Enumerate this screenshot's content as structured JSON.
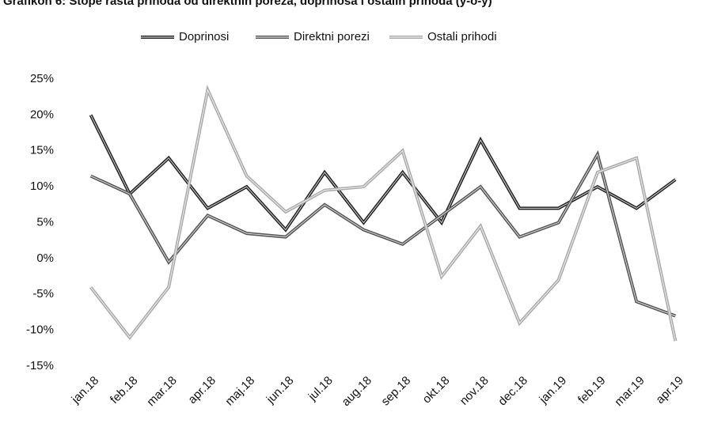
{
  "chart_data": {
    "type": "line",
    "title": "Grafikon 6: Stope rasta prihoda od direktnih poreza, doprinosa i ostalih prihoda (y-o-y)",
    "categories": [
      "jan.18",
      "feb.18",
      "mar.18",
      "apr.18",
      "maj.18",
      "jun.18",
      "jul.18",
      "aug.18",
      "sep.18",
      "okt.18",
      "nov.18",
      "dec.18",
      "jan.19",
      "feb.19",
      "mar.19",
      "apr.19"
    ],
    "series": [
      {
        "name": "Doprinosi",
        "color": "#222222",
        "values": [
          20,
          9,
          14,
          7,
          10,
          4,
          12,
          5,
          12,
          5,
          16.5,
          7,
          7,
          10,
          7,
          11
        ]
      },
      {
        "name": "Direktni porezi",
        "color": "#555555",
        "values": [
          11.5,
          9,
          -0.5,
          6,
          3.5,
          3,
          7.5,
          4,
          2,
          6,
          10,
          3,
          5,
          14.5,
          -6,
          -8
        ]
      },
      {
        "name": "Ostali prihodi",
        "color": "#aaaaaa",
        "values": [
          -4,
          -11,
          -4,
          23.5,
          11.5,
          6.5,
          9.5,
          10,
          15,
          -2.5,
          4.5,
          -9,
          -3,
          12,
          14,
          -11.5
        ]
      }
    ],
    "ylim": [
      -15,
      25
    ],
    "yticks": [
      {
        "value": -15,
        "label": "-15%"
      },
      {
        "value": -10,
        "label": "-10%"
      },
      {
        "value": -5,
        "label": "-5%"
      },
      {
        "value": 0,
        "label": "0%"
      },
      {
        "value": 5,
        "label": "5%"
      },
      {
        "value": 10,
        "label": "10%"
      },
      {
        "value": 15,
        "label": "15%"
      },
      {
        "value": 20,
        "label": "20%"
      },
      {
        "value": 25,
        "label": "25%"
      }
    ],
    "grid": false,
    "legend": "top"
  }
}
